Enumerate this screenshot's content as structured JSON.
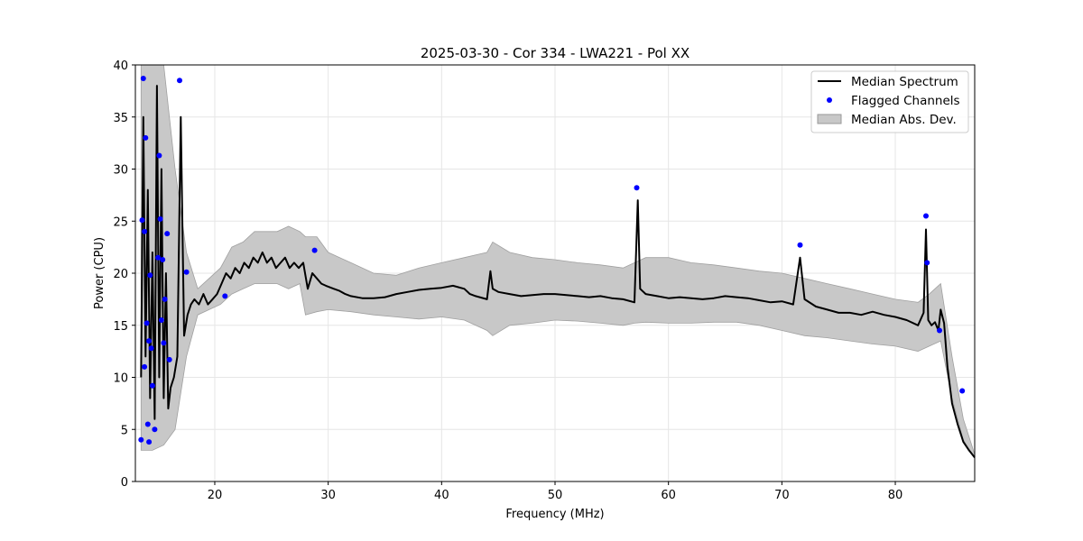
{
  "chart_data": {
    "type": "line",
    "title": "2025-03-30 - Cor 334 - LWA221 - Pol XX",
    "xlabel": "Frequency (MHz)",
    "ylabel": "Power (CPU)",
    "xlim": [
      13,
      87
    ],
    "ylim": [
      0,
      40
    ],
    "xticks": [
      20,
      30,
      40,
      50,
      60,
      70,
      80
    ],
    "yticks": [
      0,
      5,
      10,
      15,
      20,
      25,
      30,
      35,
      40
    ],
    "grid": true,
    "legend_position": "top-right",
    "legend": [
      {
        "label": "Median Spectrum",
        "kind": "line",
        "color": "#000000"
      },
      {
        "label": "Flagged Channels",
        "kind": "marker",
        "color": "#0000ff"
      },
      {
        "label": "Median Abs. Dev.",
        "kind": "fill",
        "color": "#c8c8c8"
      }
    ],
    "series": [
      {
        "name": "Median Spectrum",
        "kind": "line",
        "color": "#000000",
        "x": [
          13.5,
          13.7,
          13.9,
          14.1,
          14.3,
          14.5,
          14.7,
          14.9,
          15.1,
          15.3,
          15.5,
          15.7,
          15.9,
          16.1,
          16.4,
          16.7,
          17.0,
          17.3,
          17.6,
          17.9,
          18.2,
          18.6,
          19.0,
          19.4,
          19.8,
          20.2,
          20.6,
          21.0,
          21.4,
          21.8,
          22.2,
          22.6,
          23.0,
          23.4,
          23.8,
          24.2,
          24.6,
          25.0,
          25.4,
          25.8,
          26.2,
          26.6,
          27.0,
          27.4,
          27.8,
          28.2,
          28.6,
          29.0,
          29.4,
          29.8,
          30.5,
          31.0,
          31.5,
          32.0,
          33.0,
          34.0,
          35.0,
          36.0,
          37.0,
          38.0,
          39.0,
          40.0,
          41.0,
          42.0,
          42.5,
          43.0,
          44.0,
          44.3,
          44.5,
          45.0,
          46.0,
          47.0,
          48.0,
          49.0,
          50.0,
          51.0,
          52.0,
          53.0,
          54.0,
          55.0,
          56.0,
          57.0,
          57.3,
          57.5,
          58.0,
          59.0,
          60.0,
          61.0,
          62.0,
          63.0,
          64.0,
          65.0,
          66.0,
          67.0,
          68.0,
          69.0,
          70.0,
          71.0,
          71.6,
          72.0,
          73.0,
          74.0,
          75.0,
          76.0,
          77.0,
          78.0,
          79.0,
          80.0,
          81.0,
          82.0,
          82.5,
          82.7,
          82.9,
          83.2,
          83.5,
          83.8,
          84.0,
          84.3,
          84.6,
          85.0,
          85.5,
          86.0,
          86.5,
          87.0
        ],
        "y": [
          10,
          35,
          12,
          28,
          8,
          22,
          6,
          38,
          10,
          30,
          8,
          20,
          7,
          9,
          10,
          12,
          35,
          14,
          16,
          17,
          17.5,
          17,
          18,
          17,
          17.5,
          18,
          19,
          20,
          19.5,
          20.5,
          20,
          21,
          20.5,
          21.5,
          21,
          22,
          21,
          21.5,
          20.5,
          21,
          21.5,
          20.5,
          21,
          20.5,
          21,
          18.5,
          20,
          19.5,
          19,
          18.8,
          18.5,
          18.3,
          18,
          17.8,
          17.6,
          17.6,
          17.7,
          18,
          18.2,
          18.4,
          18.5,
          18.6,
          18.8,
          18.5,
          18,
          17.8,
          17.5,
          20.2,
          18.5,
          18.2,
          18,
          17.8,
          17.9,
          18,
          18,
          17.9,
          17.8,
          17.7,
          17.8,
          17.6,
          17.5,
          17.2,
          27,
          18.5,
          18,
          17.8,
          17.6,
          17.7,
          17.6,
          17.5,
          17.6,
          17.8,
          17.7,
          17.6,
          17.4,
          17.2,
          17.3,
          17,
          21.5,
          17.5,
          16.8,
          16.5,
          16.2,
          16.2,
          16.0,
          16.3,
          16.0,
          15.8,
          15.5,
          15.0,
          16.2,
          24.2,
          15.5,
          15.0,
          15.3,
          14.5,
          16.5,
          15.2,
          11.0,
          7.5,
          5.5,
          3.8,
          3.0,
          2.3
        ]
      },
      {
        "name": "Median Abs. Dev.",
        "kind": "band",
        "color": "#c8c8c8",
        "x": [
          13.5,
          14.5,
          15.5,
          16.5,
          17.5,
          18.5,
          19.5,
          20.5,
          21.5,
          22.5,
          23.5,
          24.5,
          25.5,
          26.5,
          27.5,
          28.0,
          29.0,
          30.0,
          32.0,
          34.0,
          36.0,
          38.0,
          40.0,
          42.0,
          44.0,
          44.5,
          46.0,
          48.0,
          50.0,
          52.0,
          54.0,
          56.0,
          57.0,
          58.0,
          60.0,
          62.0,
          64.0,
          66.0,
          68.0,
          70.0,
          72.0,
          74.0,
          76.0,
          78.0,
          80.0,
          82.0,
          83.0,
          84.0,
          85.0,
          86.0,
          87.0
        ],
        "lower": [
          3.0,
          3.0,
          3.5,
          5.0,
          12.0,
          16.0,
          16.5,
          17.0,
          18.0,
          18.5,
          19.0,
          19.0,
          19.0,
          18.5,
          19.0,
          16.0,
          16.3,
          16.5,
          16.3,
          16.0,
          15.8,
          15.6,
          15.8,
          15.5,
          14.5,
          14.0,
          15.0,
          15.2,
          15.5,
          15.4,
          15.2,
          15.0,
          15.2,
          15.3,
          15.2,
          15.2,
          15.3,
          15.3,
          15.0,
          14.5,
          14.0,
          13.8,
          13.5,
          13.2,
          13.0,
          12.5,
          13.0,
          13.5,
          8.0,
          4.0,
          2.2
        ],
        "upper": [
          40,
          40,
          40,
          30,
          22,
          18.5,
          19.5,
          20.5,
          22.5,
          23.0,
          24.0,
          24.0,
          24.0,
          24.5,
          24.0,
          23.5,
          23.5,
          22.0,
          21.0,
          20.0,
          19.8,
          20.5,
          21.0,
          21.5,
          22.0,
          23.0,
          22.0,
          21.5,
          21.3,
          21.0,
          20.8,
          20.5,
          21.0,
          21.5,
          21.5,
          21.0,
          20.8,
          20.5,
          20.2,
          20.0,
          19.5,
          19.0,
          18.5,
          18.0,
          17.5,
          17.2,
          18.0,
          19.0,
          12.0,
          6.0,
          2.6
        ]
      },
      {
        "name": "Flagged Channels",
        "kind": "scatter",
        "color": "#0000ff",
        "x": [
          13.5,
          13.6,
          13.7,
          13.8,
          13.9,
          14.0,
          14.1,
          14.2,
          14.3,
          14.5,
          14.7,
          15.0,
          15.1,
          15.2,
          15.3,
          15.4,
          15.6,
          15.8,
          16.0,
          16.9,
          17.5,
          20.9,
          28.8,
          57.2,
          71.6,
          82.7,
          82.8,
          83.9,
          85.9,
          13.8,
          14.2,
          14.4,
          15.5
        ],
        "y": [
          4.0,
          25.1,
          38.7,
          24.0,
          33.0,
          15.2,
          5.5,
          13.5,
          19.8,
          9.2,
          5.0,
          21.5,
          31.3,
          25.2,
          15.5,
          21.3,
          17.5,
          23.8,
          11.7,
          38.5,
          20.1,
          17.8,
          22.2,
          28.2,
          22.7,
          25.5,
          21.0,
          14.5,
          8.7,
          11.0,
          3.8,
          12.8,
          13.3
        ]
      }
    ]
  }
}
